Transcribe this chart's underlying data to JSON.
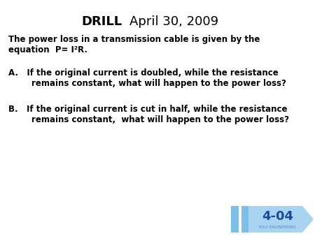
{
  "title_left": "DRILL",
  "title_right": "April 30, 2009",
  "background_color": "#ffffff",
  "text_color": "#000000",
  "intro_line1": "The power loss in a transmission cable is given by the",
  "intro_line2": "equation  P= I²R.",
  "item_a_line1": "A.   If the original current is doubled, while the resistance",
  "item_a_line2": "        remains constant, what will happen to the power loss?",
  "item_b_line1": "B.   If the original current is cut in half, while the resistance",
  "item_b_line2": "        remains constant,  what will happen to the power loss?",
  "badge_text": "4-04",
  "badge_subtext": "POLY ENGINEERING",
  "badge_color": "#a8d4f0",
  "badge_bar_color": "#7bbee8",
  "title_fontsize": 13,
  "body_fontsize": 8.5,
  "badge_fontsize": 13
}
